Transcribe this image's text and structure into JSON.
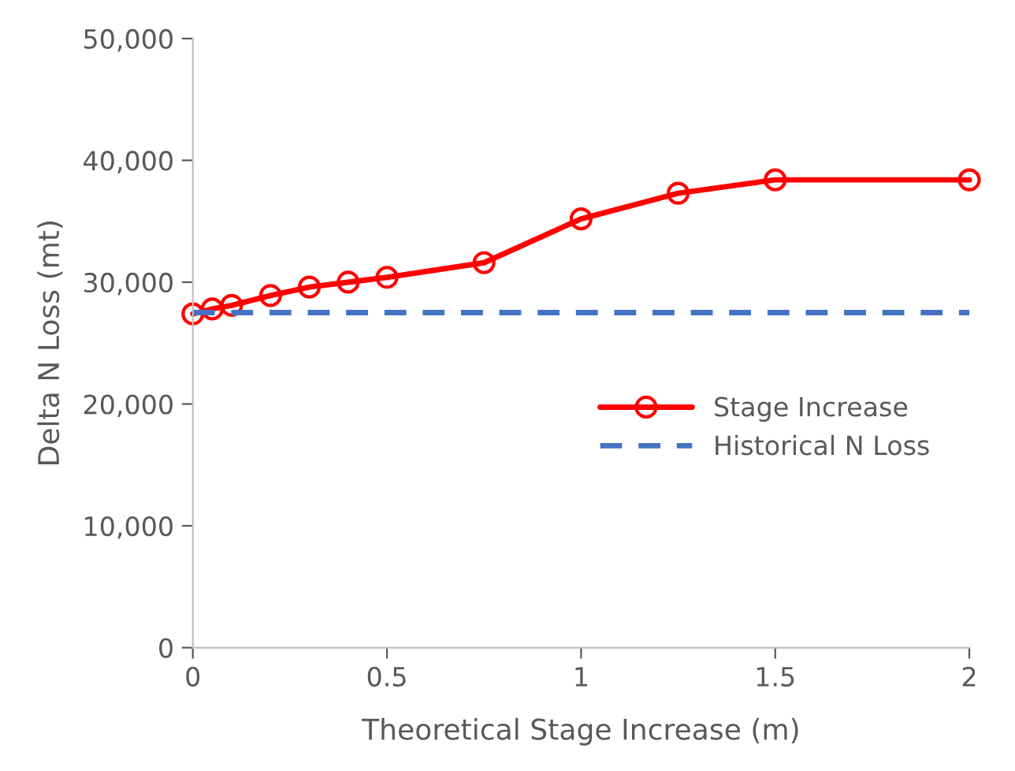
{
  "chart_data": {
    "type": "line",
    "xlabel": "Theoretical Stage Increase (m)",
    "ylabel": "Delta N Loss (mt)",
    "x": [
      0,
      0.05,
      0.1,
      0.2,
      0.3,
      0.4,
      0.5,
      0.75,
      1.0,
      1.25,
      1.5,
      2.0
    ],
    "series": [
      {
        "name": "Stage Increase",
        "color": "#ff0000",
        "marker": "circle",
        "line_style": "solid",
        "values": [
          27400,
          27800,
          28100,
          28900,
          29600,
          30000,
          30400,
          31600,
          35200,
          37300,
          38400,
          38400
        ]
      },
      {
        "name": "Historical N Loss",
        "color": "#4472c4",
        "marker": "none",
        "line_style": "dashed",
        "x": [
          0,
          2.0
        ],
        "values": [
          27500,
          27500
        ]
      }
    ],
    "xlim": [
      0,
      2
    ],
    "xticks": [
      0,
      0.5,
      1,
      1.5,
      2
    ],
    "ylim": [
      0,
      50000
    ],
    "yticks": [
      {
        "value": 0,
        "label": "0"
      },
      {
        "value": 10000,
        "label": "10,000"
      },
      {
        "value": 20000,
        "label": "20,000"
      },
      {
        "value": 30000,
        "label": "30,000"
      },
      {
        "value": 40000,
        "label": "40,000"
      },
      {
        "value": 50000,
        "label": "50,000"
      }
    ],
    "grid": false,
    "legend": "right"
  }
}
